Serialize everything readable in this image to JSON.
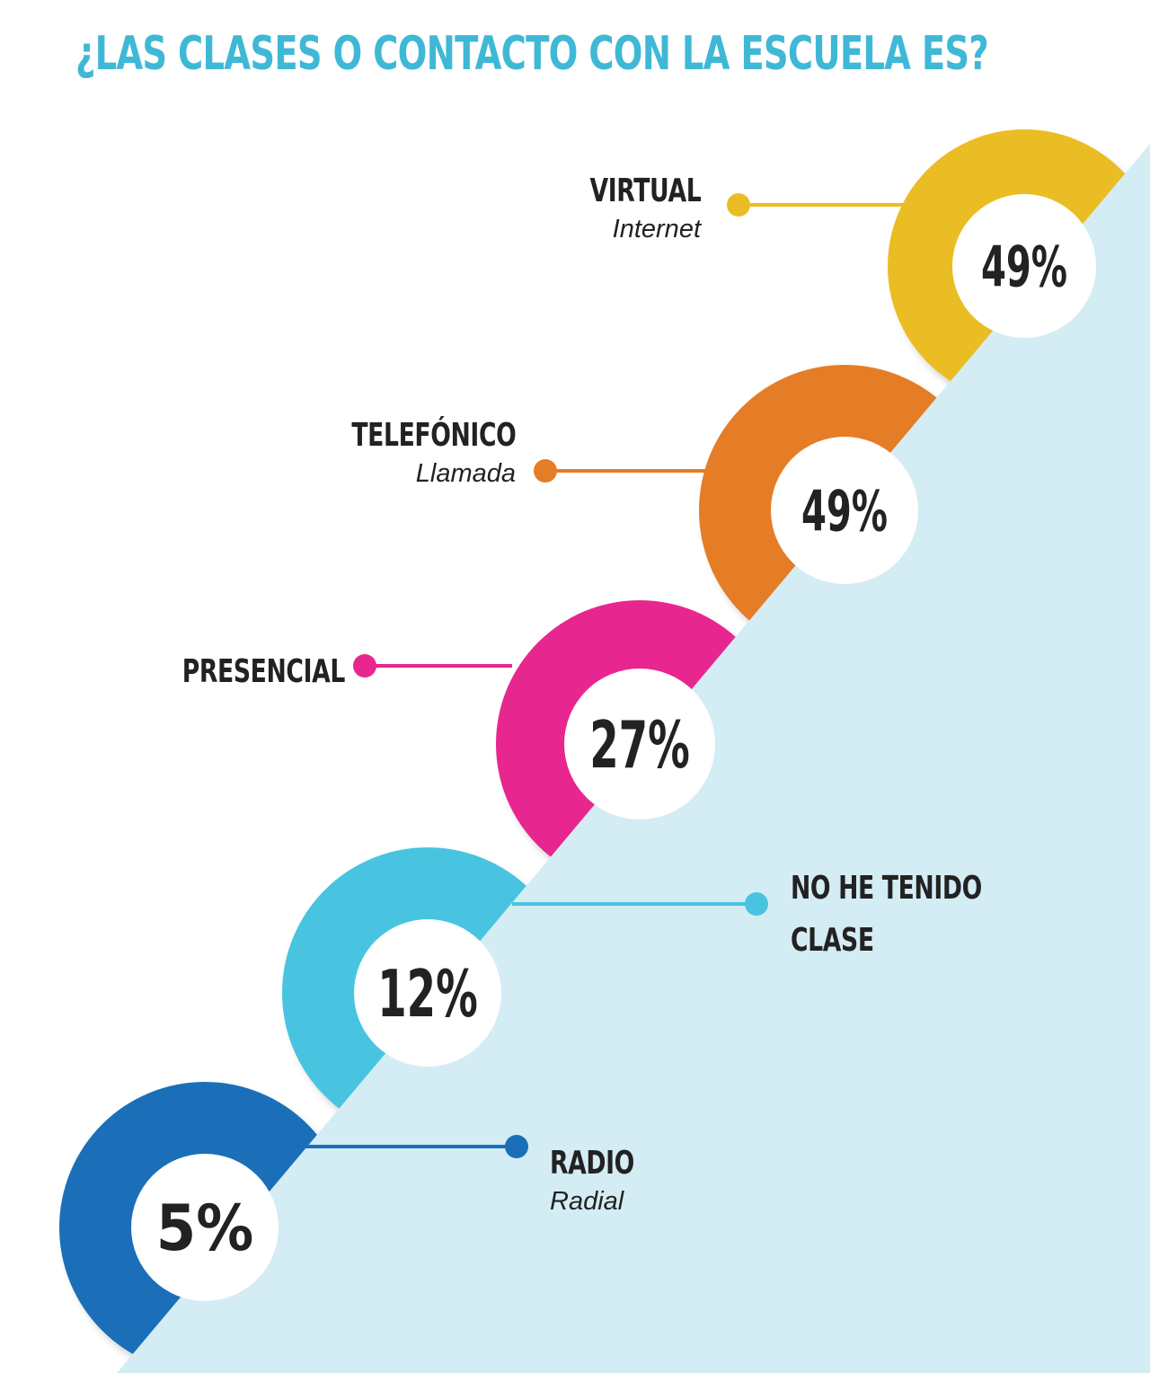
{
  "title": "¿LAS CLASES O CONTACTO CON LA ESCUELA ES?",
  "colors": {
    "title": "#3fb8d6",
    "background_slope": "#d4ecf4",
    "text": "#222222"
  },
  "chart_data": {
    "type": "bar",
    "title": "¿LAS CLASES O CONTACTO CON LA ESCUELA ES?",
    "unit": "%",
    "categories": [
      "VIRTUAL",
      "TELEFÓNICO",
      "PRESENCIAL",
      "NO HE TENIDO CLASE",
      "RADIO"
    ],
    "items": [
      {
        "label": "VIRTUAL",
        "sub": "Internet",
        "value": 49,
        "value_label": "49%",
        "color": "#ebbd24"
      },
      {
        "label": "TELEFÓNICO",
        "sub": "Llamada",
        "value": 49,
        "value_label": "49%",
        "color": "#e57d26"
      },
      {
        "label": "PRESENCIAL",
        "sub": "",
        "value": 27,
        "value_label": "27%",
        "color": "#e8268f"
      },
      {
        "label_lines": [
          "NO HE TENIDO",
          "CLASE"
        ],
        "label": "NO HE TENIDO CLASE",
        "sub": "",
        "value": 12,
        "value_label": "12%",
        "color": "#48c4e0"
      },
      {
        "label": "RADIO",
        "sub": "Radial",
        "value": 5,
        "value_label": "5%",
        "color": "#1a6fb8"
      }
    ]
  }
}
